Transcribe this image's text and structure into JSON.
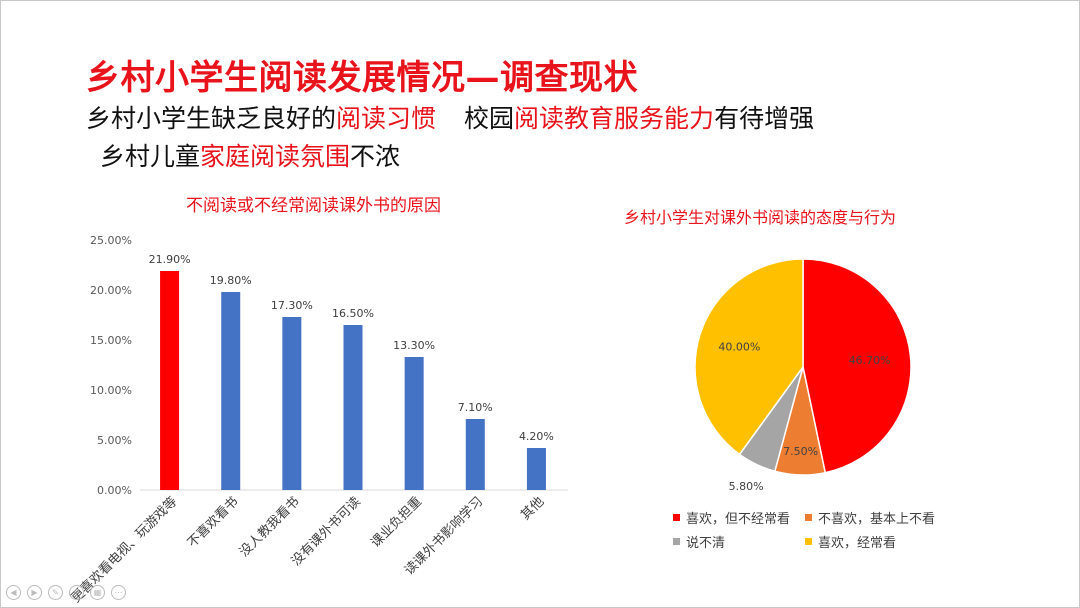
{
  "slide": {
    "title": "乡村小学生阅读发展情况—调查现状",
    "line1": {
      "p1": "乡村小学生缺乏良好的",
      "p2": "阅读习惯",
      "p3": "校园",
      "p4": "阅读教育服务能力",
      "p5": "有待增强"
    },
    "line2": {
      "p1": "乡村儿童",
      "p2": "家庭阅读氛围",
      "p3": "不浓"
    }
  },
  "colors": {
    "accent_red": "#e8131b",
    "bar_blue": "#4472c4",
    "bar_red": "#ff0000"
  },
  "chart_data": [
    {
      "type": "bar",
      "title": "不阅读或不经常阅读课外书的原因",
      "categories": [
        "更喜欢看电视、玩游戏等",
        "不喜欢看书",
        "没人教我看书",
        "没有课外书可读",
        "课业负担重",
        "读课外书影响学习",
        "其他"
      ],
      "values": [
        21.9,
        19.8,
        17.3,
        16.5,
        13.3,
        7.1,
        4.2
      ],
      "value_labels": [
        "21.90%",
        "19.80%",
        "17.30%",
        "16.50%",
        "13.30%",
        "7.10%",
        "4.20%"
      ],
      "highlight_index": 0,
      "ylim": [
        0,
        25
      ],
      "yticks": [
        "0.00%",
        "5.00%",
        "10.00%",
        "15.00%",
        "20.00%",
        "25.00%"
      ],
      "grid": false
    },
    {
      "type": "pie",
      "title": "乡村小学生对课外书阅读的态度与行为",
      "slices": [
        {
          "label": "喜欢，但不经常看",
          "value": 46.7,
          "text": "46.70%",
          "color": "#ff0000"
        },
        {
          "label": "不喜欢，基本上不看",
          "value": 7.5,
          "text": "7.50%",
          "color": "#ed7d31"
        },
        {
          "label": "说不清",
          "value": 5.8,
          "text": "5.80%",
          "color": "#a5a5a5"
        },
        {
          "label": "喜欢，经常看",
          "value": 40.0,
          "text": "40.00%",
          "color": "#ffc000"
        }
      ],
      "legend_position": "bottom"
    }
  ]
}
